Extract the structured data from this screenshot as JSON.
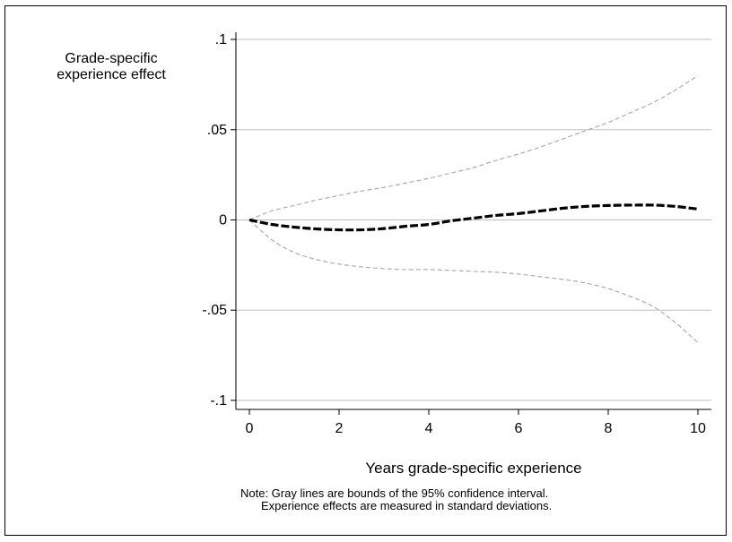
{
  "chart_data": {
    "type": "line",
    "title": "",
    "ylabel_lines": [
      "Grade-specific",
      "experience effect"
    ],
    "xlabel": "Years grade-specific experience",
    "notes": [
      "Note: Gray lines are bounds of the 95% confidence interval.",
      "Experience effects are measured in standard deviations."
    ],
    "xlim": [
      -0.3,
      10.3
    ],
    "ylim": [
      -0.105,
      0.102
    ],
    "x_ticks": [
      0,
      2,
      4,
      6,
      8,
      10
    ],
    "x_tick_labels": [
      "0",
      "2",
      "4",
      "6",
      "8",
      "10"
    ],
    "y_ticks": [
      0.1,
      0.05,
      0,
      -0.05,
      -0.1
    ],
    "y_tick_labels": [
      ".1",
      ".05",
      "0",
      "-.05",
      "-.1"
    ],
    "grid": true,
    "legend": "none",
    "colors": {
      "estimate": "#000000",
      "bounds": "#a6a6a6",
      "grid": "#c0c0c0",
      "axis": "#000000"
    },
    "series": [
      {
        "role": "estimate",
        "style": "thick-dashed",
        "x": [
          0,
          0.5,
          1,
          1.5,
          2,
          2.5,
          3,
          3.5,
          4,
          4.5,
          5,
          5.5,
          6,
          6.5,
          7,
          7.5,
          8,
          8.5,
          9,
          9.5,
          10
        ],
        "y": [
          0,
          -0.0025,
          -0.004,
          -0.005,
          -0.0055,
          -0.0055,
          -0.0048,
          -0.0035,
          -0.0025,
          -0.0005,
          0.001,
          0.0025,
          0.0035,
          0.005,
          0.0065,
          0.0075,
          0.008,
          0.0082,
          0.0082,
          0.0075,
          0.006
        ]
      },
      {
        "role": "upper-bound",
        "style": "thin-dashed",
        "x": [
          0,
          0.5,
          1,
          1.5,
          2,
          2.5,
          3,
          3.5,
          4,
          4.5,
          5,
          5.5,
          6,
          6.5,
          7,
          7.5,
          8,
          8.5,
          9,
          9.5,
          10
        ],
        "y": [
          0,
          0.005,
          0.008,
          0.011,
          0.0135,
          0.016,
          0.018,
          0.0205,
          0.023,
          0.026,
          0.029,
          0.033,
          0.0365,
          0.0405,
          0.045,
          0.0495,
          0.054,
          0.0595,
          0.065,
          0.072,
          0.08
        ]
      },
      {
        "role": "lower-bound",
        "style": "thin-dashed",
        "x": [
          0,
          0.5,
          1,
          1.5,
          2,
          2.5,
          3,
          3.5,
          4,
          4.5,
          5,
          5.5,
          6,
          6.5,
          7,
          7.5,
          8,
          8.5,
          9,
          9.5,
          10
        ],
        "y": [
          0,
          -0.011,
          -0.018,
          -0.022,
          -0.0245,
          -0.026,
          -0.027,
          -0.0275,
          -0.0275,
          -0.028,
          -0.0285,
          -0.029,
          -0.03,
          -0.0315,
          -0.033,
          -0.035,
          -0.038,
          -0.0425,
          -0.048,
          -0.057,
          -0.068
        ]
      }
    ]
  }
}
